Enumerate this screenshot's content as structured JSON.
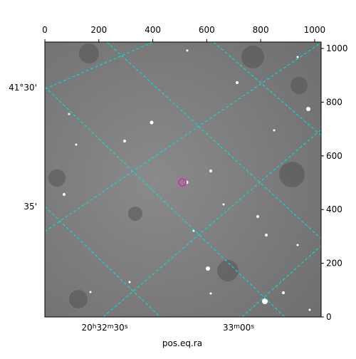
{
  "chart_data": {
    "type": "image",
    "xlabel": "pos.eq.ra",
    "xlim": [
      0,
      1024
    ],
    "ylim": [
      0,
      1024
    ],
    "xticks": [
      0,
      200,
      400,
      600,
      800,
      1000
    ],
    "yticks": [
      0,
      200,
      400,
      600,
      800,
      1000
    ],
    "ra_tick_labels": [
      [
        "20",
        "h",
        "32",
        "m",
        "30",
        "s"
      ],
      [
        "33",
        "m",
        "00",
        "s"
      ]
    ],
    "dec_tick_labels": [
      "41°30'",
      "35'"
    ]
  }
}
